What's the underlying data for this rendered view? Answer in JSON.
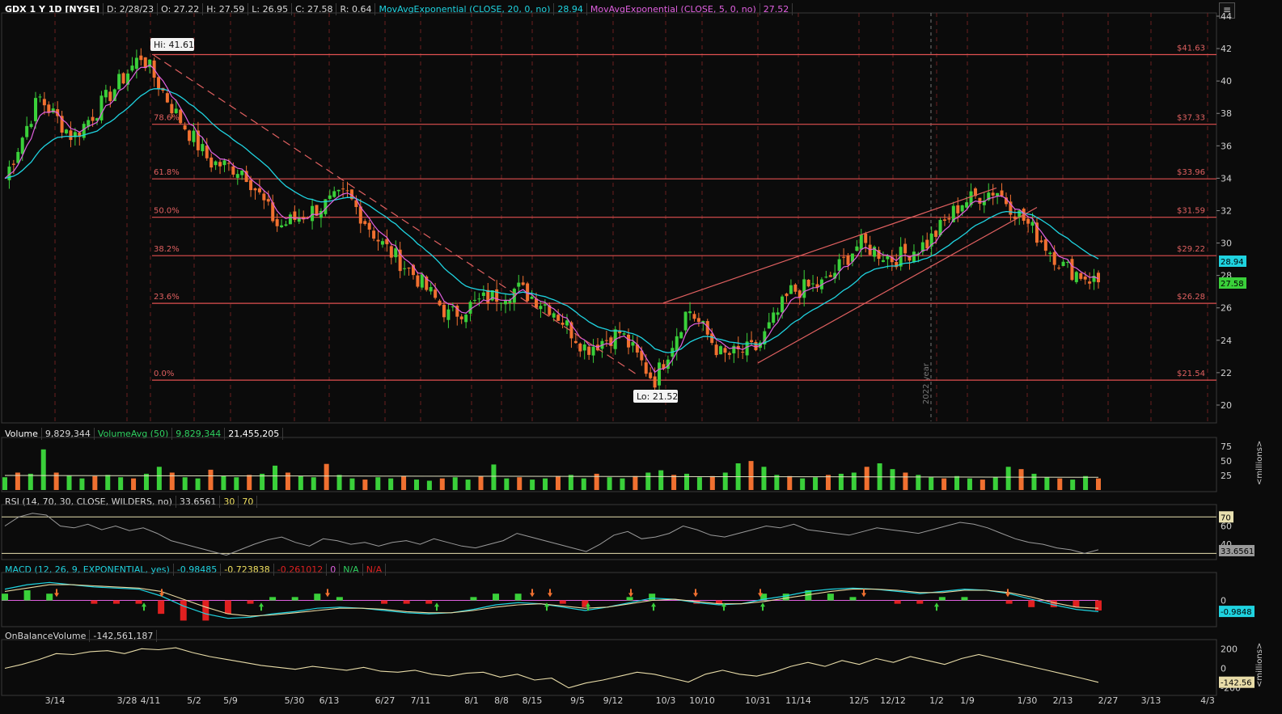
{
  "header": {
    "symbol": "GDX 1 Y 1D [NYSE]",
    "date": "D: 2/28/23",
    "open": "O: 27.22",
    "high": "H: 27.59",
    "low": "L: 26.95",
    "close": "C: 27.58",
    "range": "R: 0.64",
    "ema20_label": "MovAvgExponential (CLOSE, 20, 0, no)",
    "ema20_value": "28.94",
    "ema5_label": "MovAvgExponential (CLOSE, 5, 0, no)",
    "ema5_value": "27.52"
  },
  "volume_header": {
    "label": "Volume",
    "value": "9,829,344",
    "avg_label": "VolumeAvg (50)",
    "avg_value": "9,829,344",
    "avg_value2": "21,455,205"
  },
  "rsi_header": {
    "label": "RSI (14, 70, 30, CLOSE, WILDERS, no)",
    "value": "33.6561",
    "lvl1": "30",
    "lvl2": "70"
  },
  "macd_header": {
    "label": "MACD (12, 26, 9, EXPONENTIAL, yes)",
    "value": "-0.98485",
    "avg": "-0.723838",
    "diff": "-0.261012",
    "zero": "0",
    "na1": "N/A",
    "na2": "N/A"
  },
  "obv_header": {
    "label": "OnBalanceVolume",
    "value": "-142,561,187"
  },
  "annotations": {
    "hi_label": "Hi: 41.61",
    "lo_label": "Lo: 21.52",
    "year_marker": "2022 year"
  },
  "colors": {
    "up": "#3ad03a",
    "down": "#f07030",
    "ema20": "#1fd3e0",
    "ema5": "#e060e0",
    "fib": "#e05050",
    "grid": "#6b1f1f",
    "bg": "#0b0b0b"
  },
  "chart_data": [
    {
      "type": "candlestick",
      "title": "GDX 1 Y 1D [NYSE]",
      "ylim": [
        19,
        44
      ],
      "y_ticks": [
        20,
        22,
        24,
        26,
        28,
        30,
        32,
        34,
        36,
        38,
        40,
        42,
        44
      ],
      "x_tick_labels": [
        "3/14",
        "3/28",
        "4/11",
        "5/2",
        "5/9",
        "5/30",
        "6/13",
        "6/27",
        "7/11",
        "8/1",
        "8/8",
        "8/15",
        "9/5",
        "9/12",
        "10/3",
        "10/10",
        "10/31",
        "11/14",
        "12/5",
        "12/12",
        "1/2",
        "1/9",
        "1/30",
        "2/13",
        "2/27",
        "3/13",
        "4/3"
      ],
      "price_key_points": [
        [
          "3/1",
          34.0
        ],
        [
          "3/8",
          39.0
        ],
        [
          "3/14",
          36.5
        ],
        [
          "3/28",
          39.0
        ],
        [
          "4/11",
          41.6
        ],
        [
          "4/18",
          38.0
        ],
        [
          "4/25",
          35.0
        ],
        [
          "5/2",
          34.5
        ],
        [
          "5/9",
          31.0
        ],
        [
          "5/16",
          32.0
        ],
        [
          "5/30",
          33.0
        ],
        [
          "6/13",
          30.0
        ],
        [
          "6/27",
          28.0
        ],
        [
          "7/11",
          25.5
        ],
        [
          "8/1",
          26.5
        ],
        [
          "8/8",
          27.2
        ],
        [
          "8/15",
          26.0
        ],
        [
          "9/5",
          23.5
        ],
        [
          "9/12",
          24.5
        ],
        [
          "9/26",
          21.5
        ],
        [
          "10/3",
          26.0
        ],
        [
          "10/10",
          23.0
        ],
        [
          "10/31",
          23.5
        ],
        [
          "11/4",
          27.0
        ],
        [
          "11/14",
          27.5
        ],
        [
          "12/5",
          30.0
        ],
        [
          "12/12",
          29.0
        ],
        [
          "1/2",
          30.0
        ],
        [
          "1/9",
          32.5
        ],
        [
          "1/23",
          33.3
        ],
        [
          "1/30",
          31.0
        ],
        [
          "2/13",
          28.5
        ],
        [
          "2/24",
          27.58
        ]
      ],
      "fib_levels": [
        {
          "pct": "0.0%",
          "price": "$21.54",
          "value": 21.54
        },
        {
          "pct": "23.6%",
          "price": "$26.28",
          "value": 26.28
        },
        {
          "pct": "38.2%",
          "price": "$29.22",
          "value": 29.22
        },
        {
          "pct": "50.0%",
          "price": "$31.59",
          "value": 31.59
        },
        {
          "pct": "61.8%",
          "price": "$33.96",
          "value": 33.96
        },
        {
          "pct": "78.6%",
          "price": "$37.33",
          "value": 37.33
        },
        {
          "pct": "",
          "price": "$41.63",
          "value": 41.63
        }
      ],
      "last_price_badges": [
        {
          "value": "28.94",
          "color": "#1fd3e0"
        },
        {
          "value": "27.58",
          "color": "#3ad03a"
        }
      ],
      "hi": 41.61,
      "lo": 21.52
    },
    {
      "type": "bar",
      "title": "Volume",
      "unit": "<millions>",
      "y_ticks": [
        25,
        50,
        75
      ],
      "ylim": [
        0,
        85
      ],
      "values": [
        22,
        30,
        28,
        70,
        30,
        25,
        20,
        24,
        26,
        22,
        20,
        28,
        40,
        30,
        22,
        20,
        35,
        24,
        22,
        26,
        28,
        42,
        30,
        24,
        22,
        45,
        26,
        20,
        18,
        22,
        20,
        24,
        18,
        16,
        20,
        22,
        18,
        24,
        44,
        20,
        22,
        18,
        20,
        24,
        26,
        20,
        28,
        22,
        20,
        24,
        30,
        34,
        26,
        28,
        22,
        24,
        30,
        46,
        50,
        40,
        26,
        24,
        20,
        22,
        26,
        28,
        30,
        40,
        46,
        36,
        30,
        26,
        22,
        20,
        24,
        20,
        18,
        22,
        40,
        36,
        28,
        22,
        20,
        18,
        24,
        20
      ]
    },
    {
      "type": "line",
      "title": "RSI (14, 70, 30, CLOSE, WILDERS, no)",
      "y_ticks": [
        60,
        40
      ],
      "levels": [
        30,
        70
      ],
      "ylim": [
        25,
        80
      ],
      "values": [
        60,
        70,
        74,
        72,
        60,
        58,
        62,
        56,
        60,
        55,
        58,
        52,
        44,
        40,
        36,
        32,
        28,
        34,
        40,
        45,
        48,
        42,
        38,
        46,
        44,
        40,
        42,
        38,
        42,
        44,
        40,
        46,
        42,
        38,
        36,
        40,
        44,
        52,
        48,
        44,
        40,
        36,
        32,
        40,
        50,
        54,
        46,
        48,
        52,
        60,
        56,
        50,
        48,
        52,
        56,
        60,
        58,
        62,
        56,
        54,
        52,
        50,
        54,
        58,
        56,
        54,
        52,
        56,
        60,
        64,
        62,
        58,
        52,
        46,
        42,
        40,
        36,
        34,
        30,
        34
      ]
    },
    {
      "type": "line",
      "title": "MACD (12, 26, 9, EXPONENTIAL, yes)",
      "y_ticks": [
        0
      ],
      "ylim": [
        -2.2,
        2.2
      ],
      "macd": [
        1.0,
        1.4,
        1.6,
        1.4,
        1.2,
        1.1,
        1.0,
        0.4,
        -0.5,
        -1.2,
        -1.6,
        -1.5,
        -1.2,
        -1.0,
        -0.7,
        -0.6,
        -0.7,
        -0.9,
        -1.1,
        -1.2,
        -1.1,
        -0.8,
        -0.4,
        -0.2,
        -0.3,
        -0.6,
        -0.9,
        -0.6,
        -0.2,
        0.2,
        0.1,
        -0.2,
        -0.4,
        -0.3,
        0.1,
        0.4,
        0.8,
        1.0,
        1.1,
        1.0,
        0.8,
        0.6,
        0.8,
        1.0,
        0.9,
        0.6,
        0.1,
        -0.4,
        -0.8,
        -1.0
      ],
      "signal": [
        0.8,
        1.1,
        1.4,
        1.4,
        1.3,
        1.2,
        1.1,
        0.8,
        0.1,
        -0.6,
        -1.2,
        -1.4,
        -1.3,
        -1.1,
        -0.9,
        -0.7,
        -0.7,
        -0.8,
        -1.0,
        -1.1,
        -1.1,
        -0.9,
        -0.6,
        -0.4,
        -0.3,
        -0.5,
        -0.7,
        -0.6,
        -0.3,
        0.0,
        0.1,
        -0.1,
        -0.3,
        -0.3,
        -0.1,
        0.2,
        0.5,
        0.8,
        1.0,
        1.0,
        0.9,
        0.7,
        0.7,
        0.9,
        0.9,
        0.7,
        0.3,
        -0.2,
        -0.6,
        -0.7
      ],
      "zero_badge": "-0.9848"
    },
    {
      "type": "line",
      "title": "OnBalanceVolume",
      "unit": "<millions>",
      "y_ticks": [
        200,
        0,
        -200
      ],
      "ylim": [
        -260,
        260
      ],
      "values": [
        0,
        40,
        90,
        150,
        140,
        170,
        180,
        150,
        200,
        190,
        210,
        160,
        120,
        90,
        60,
        30,
        10,
        -10,
        20,
        0,
        -20,
        10,
        -30,
        -40,
        -20,
        -60,
        -80,
        -50,
        -40,
        -90,
        -60,
        -120,
        -100,
        -200,
        -150,
        -120,
        -80,
        -40,
        -60,
        -100,
        -140,
        -60,
        -20,
        -60,
        -80,
        -40,
        20,
        60,
        20,
        80,
        40,
        100,
        60,
        120,
        80,
        40,
        100,
        140,
        100,
        60,
        20,
        -20,
        -60,
        -100,
        -142.56
      ],
      "last_badge": "-142.56"
    }
  ]
}
